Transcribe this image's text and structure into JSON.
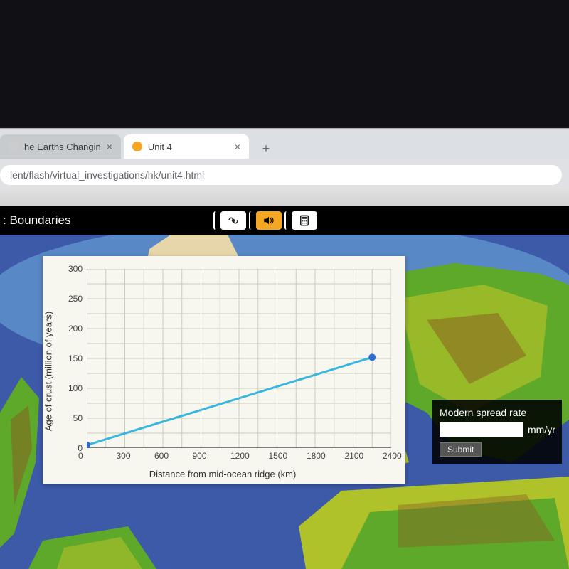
{
  "browser": {
    "tabs": [
      {
        "label": "he Earths Changin",
        "favicon_color": "#cccccc",
        "active": false
      },
      {
        "label": "Unit 4",
        "favicon_color": "#f5a623",
        "active": true
      }
    ],
    "new_tab_glyph": "+",
    "close_glyph": "×",
    "url": "lent/flash/virtual_investigations/hk/unit4.html"
  },
  "app": {
    "title": ": Boundaries",
    "icons": {
      "wave": "wave-icon",
      "speaker": "speaker-icon",
      "calculator": "calculator-icon"
    },
    "accent_color": "#f5a623"
  },
  "chart": {
    "type": "line",
    "panel_background": "#f7f7ef",
    "grid_color": "#c9cdb8",
    "axis_color": "#555555",
    "line_color": "#39b6e0",
    "marker_color": "#2d6fd1",
    "line_width": 3,
    "marker_radius": 5,
    "xlabel": "Distance from mid-ocean ridge (km)",
    "ylabel": "Age of crust (million of years)",
    "xlim": [
      0,
      2400
    ],
    "ylim": [
      0,
      300
    ],
    "xtick_step": 300,
    "ytick_step": 50,
    "xticks": [
      0,
      300,
      600,
      900,
      1200,
      1500,
      1800,
      2100,
      2400
    ],
    "yticks": [
      0,
      50,
      100,
      150,
      200,
      250,
      300
    ],
    "xgrid_step": 150,
    "ygrid_step_major": 50,
    "y_minor_per_major": 2,
    "series": [
      {
        "x": 0,
        "y": 5
      },
      {
        "x": 2250,
        "y": 152
      }
    ],
    "label_fontsize": 13,
    "tick_fontsize": 12
  },
  "input_panel": {
    "background": "rgba(0,0,0,0.88)",
    "text_color": "#ffffff",
    "label": "Modern spread rate",
    "unit": "mm/yr",
    "value": "",
    "submit_label": "Submit"
  },
  "map": {
    "ocean_color": "#3d5aa8",
    "shallow_color": "#6aa7d8",
    "land_low": "#5fa92a",
    "land_mid": "#b0c22a",
    "land_high": "#8a5a20",
    "ice_color": "#e6d6a9"
  }
}
